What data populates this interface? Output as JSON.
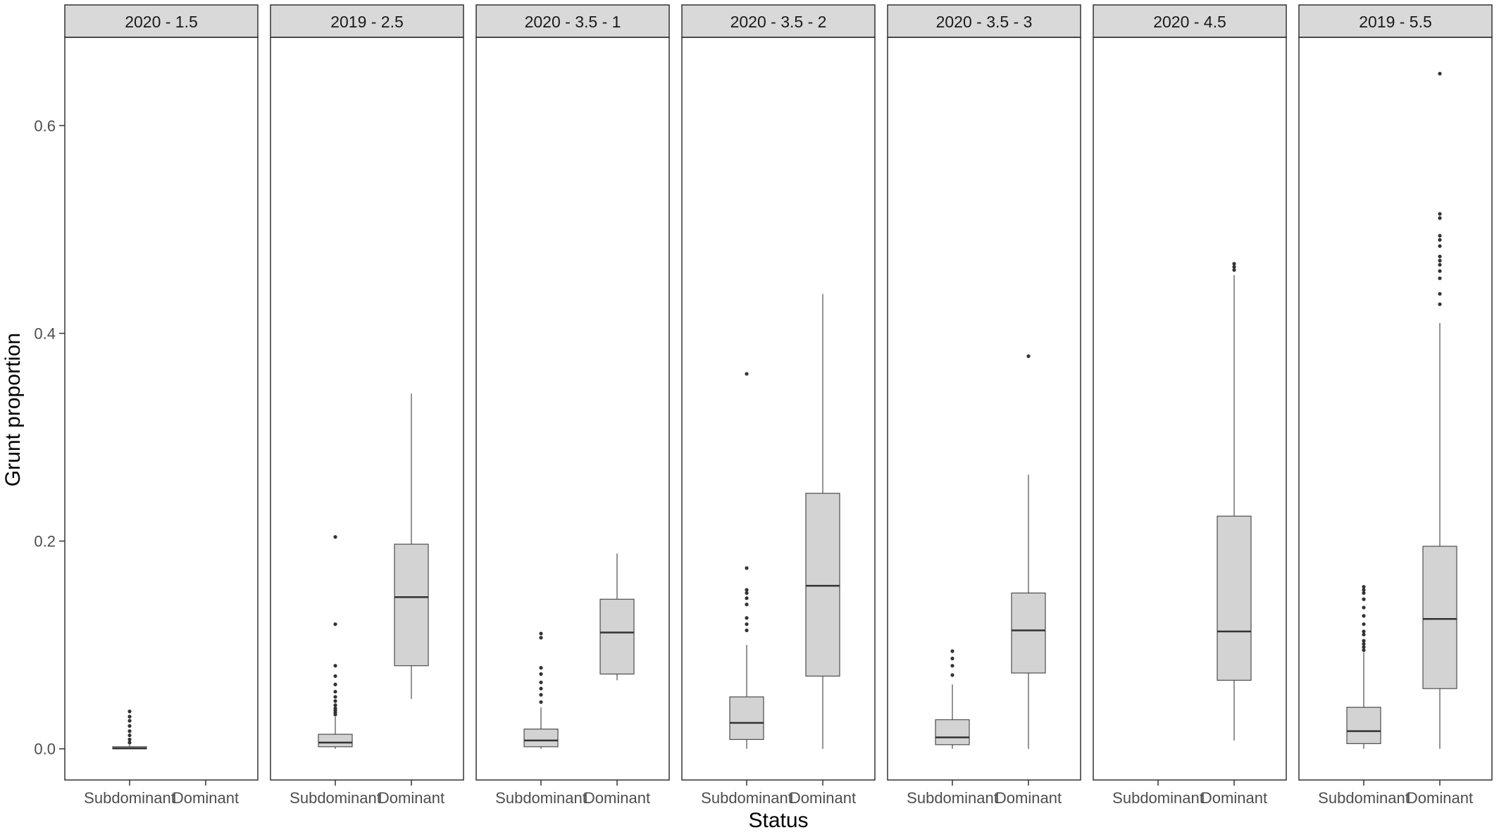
{
  "chart_data": {
    "type": "boxplot",
    "xlabel": "Status",
    "ylabel": "Grunt proportion",
    "ylim": [
      -0.03,
      0.685
    ],
    "yticks": [
      0.0,
      0.2,
      0.4,
      0.6
    ],
    "ytick_labels": [
      "0.0",
      "0.2",
      "0.4",
      "0.6"
    ],
    "categories": [
      "Subdominant",
      "Dominant"
    ],
    "colors": {
      "box_fill": "#d3d3d3",
      "strip_fill": "#d9d9d9",
      "line": "#333333",
      "whisker": "#4d4d4d",
      "text": "#4d4d4d"
    },
    "grid": false,
    "panels": [
      {
        "title": "2020 - 1.5",
        "groups": [
          {
            "category": "Subdominant",
            "min": 0.0,
            "q1": 0.0,
            "median": 0.0005,
            "q3": 0.002,
            "max": 0.004,
            "outliers": [
              0.006,
              0.009,
              0.013,
              0.017,
              0.022,
              0.027,
              0.031,
              0.036
            ]
          },
          null
        ]
      },
      {
        "title": "2019 - 2.5",
        "groups": [
          {
            "category": "Subdominant",
            "min": 0.0,
            "q1": 0.002,
            "median": 0.006,
            "q3": 0.014,
            "max": 0.031,
            "outliers": [
              0.033,
              0.035,
              0.037,
              0.039,
              0.042,
              0.046,
              0.05,
              0.055,
              0.062,
              0.07,
              0.08,
              0.12,
              0.204
            ]
          },
          {
            "category": "Dominant",
            "min": 0.048,
            "q1": 0.08,
            "median": 0.146,
            "q3": 0.197,
            "max": 0.342,
            "outliers": []
          }
        ]
      },
      {
        "title": "2020 - 3.5 - 1",
        "groups": [
          {
            "category": "Subdominant",
            "min": 0.0,
            "q1": 0.002,
            "median": 0.008,
            "q3": 0.019,
            "max": 0.04,
            "outliers": [
              0.045,
              0.052,
              0.058,
              0.064,
              0.072,
              0.078,
              0.107,
              0.111
            ]
          },
          {
            "category": "Dominant",
            "min": 0.066,
            "q1": 0.072,
            "median": 0.112,
            "q3": 0.144,
            "max": 0.188,
            "outliers": []
          }
        ]
      },
      {
        "title": "2020 - 3.5 - 2",
        "groups": [
          {
            "category": "Subdominant",
            "min": 0.0,
            "q1": 0.009,
            "median": 0.025,
            "q3": 0.05,
            "max": 0.1,
            "outliers": [
              0.114,
              0.12,
              0.126,
              0.139,
              0.145,
              0.15,
              0.153,
              0.174,
              0.361
            ]
          },
          {
            "category": "Dominant",
            "min": 0.0,
            "q1": 0.07,
            "median": 0.157,
            "q3": 0.246,
            "max": 0.438,
            "outliers": []
          }
        ]
      },
      {
        "title": "2020 - 3.5 - 3",
        "groups": [
          {
            "category": "Subdominant",
            "min": 0.0,
            "q1": 0.004,
            "median": 0.011,
            "q3": 0.028,
            "max": 0.062,
            "outliers": [
              0.071,
              0.08,
              0.087,
              0.094
            ]
          },
          {
            "category": "Dominant",
            "min": 0.0,
            "q1": 0.073,
            "median": 0.114,
            "q3": 0.15,
            "max": 0.264,
            "outliers": [
              0.378
            ]
          }
        ]
      },
      {
        "title": "2020 - 4.5",
        "groups": [
          null,
          {
            "category": "Dominant",
            "min": 0.008,
            "q1": 0.066,
            "median": 0.113,
            "q3": 0.224,
            "max": 0.456,
            "outliers": [
              0.461,
              0.464,
              0.467
            ]
          }
        ]
      },
      {
        "title": "2019 - 5.5",
        "groups": [
          {
            "category": "Subdominant",
            "min": 0.0,
            "q1": 0.005,
            "median": 0.017,
            "q3": 0.04,
            "max": 0.093,
            "outliers": [
              0.095,
              0.098,
              0.101,
              0.104,
              0.11,
              0.113,
              0.12,
              0.128,
              0.136,
              0.144,
              0.15,
              0.153,
              0.156
            ]
          },
          {
            "category": "Dominant",
            "min": 0.0,
            "q1": 0.058,
            "median": 0.125,
            "q3": 0.195,
            "max": 0.41,
            "outliers": [
              0.428,
              0.438,
              0.453,
              0.46,
              0.466,
              0.47,
              0.474,
              0.484,
              0.49,
              0.494,
              0.511,
              0.515,
              0.65
            ]
          }
        ]
      }
    ]
  }
}
